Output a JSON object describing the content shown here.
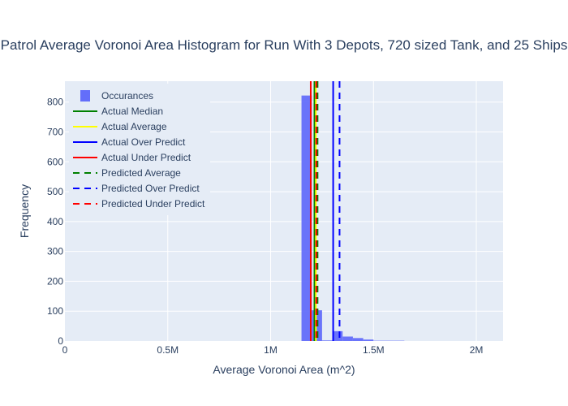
{
  "colors": {
    "plot_bg": "#e5ecf6",
    "grid": "#ffffff",
    "text": "#2a3f5f",
    "bar": "#636efa",
    "actual_median": "#008000",
    "actual_average": "#ffff00",
    "actual_over": "#0000ff",
    "actual_under": "#ff0000",
    "pred_average": "#008000",
    "pred_over": "#0000ff",
    "pred_under": "#ff0000"
  },
  "chart_data": {
    "type": "bar",
    "title": "Patrol Average Voronoi Area Histogram for Run With 3 Depots, 720 sized Tank, and 25 Ships",
    "xlabel": "Average Voronoi Area (m^2)",
    "ylabel": "Frequency",
    "xlim": [
      0,
      2130000
    ],
    "ylim": [
      0,
      870
    ],
    "x_ticks": [
      {
        "value": 0,
        "label": "0"
      },
      {
        "value": 500000,
        "label": "0.5M"
      },
      {
        "value": 1000000,
        "label": "1M"
      },
      {
        "value": 1500000,
        "label": "1.5M"
      },
      {
        "value": 2000000,
        "label": "2M"
      }
    ],
    "y_ticks": [
      {
        "value": 0,
        "label": "0"
      },
      {
        "value": 100,
        "label": "100"
      },
      {
        "value": 200,
        "label": "200"
      },
      {
        "value": 300,
        "label": "300"
      },
      {
        "value": 400,
        "label": "400"
      },
      {
        "value": 500,
        "label": "500"
      },
      {
        "value": 600,
        "label": "600"
      },
      {
        "value": 700,
        "label": "700"
      },
      {
        "value": 800,
        "label": "800"
      }
    ],
    "series_name": "Occurances",
    "bins": [
      {
        "x0": 1150000,
        "x1": 1200000,
        "count": 822
      },
      {
        "x0": 1200000,
        "x1": 1250000,
        "count": 103
      },
      {
        "x0": 1250000,
        "x1": 1300000,
        "count": 2
      },
      {
        "x0": 1300000,
        "x1": 1350000,
        "count": 33
      },
      {
        "x0": 1350000,
        "x1": 1400000,
        "count": 15
      },
      {
        "x0": 1400000,
        "x1": 1450000,
        "count": 10
      },
      {
        "x0": 1450000,
        "x1": 1500000,
        "count": 5
      },
      {
        "x0": 1500000,
        "x1": 1550000,
        "count": 1
      },
      {
        "x0": 1550000,
        "x1": 1600000,
        "count": 1
      },
      {
        "x0": 1600000,
        "x1": 1650000,
        "count": 1
      }
    ],
    "lines": [
      {
        "name": "Actual Median",
        "x": 1213000,
        "color_key": "actual_median",
        "dash": false
      },
      {
        "name": "Actual Average",
        "x": 1220000,
        "color_key": "actual_average",
        "dash": false
      },
      {
        "name": "Actual Over Predict",
        "x": 1304000,
        "color_key": "actual_over",
        "dash": false
      },
      {
        "name": "Actual Under Predict",
        "x": 1195000,
        "color_key": "actual_under",
        "dash": false
      },
      {
        "name": "Predicted Average",
        "x": 1228000,
        "color_key": "pred_average",
        "dash": true
      },
      {
        "name": "Predicted Over Predict",
        "x": 1335000,
        "color_key": "pred_over",
        "dash": true
      },
      {
        "name": "Predicted Under Predict",
        "x": 1222000,
        "color_key": "pred_under",
        "dash": true
      }
    ],
    "legend_position": "top-left"
  }
}
